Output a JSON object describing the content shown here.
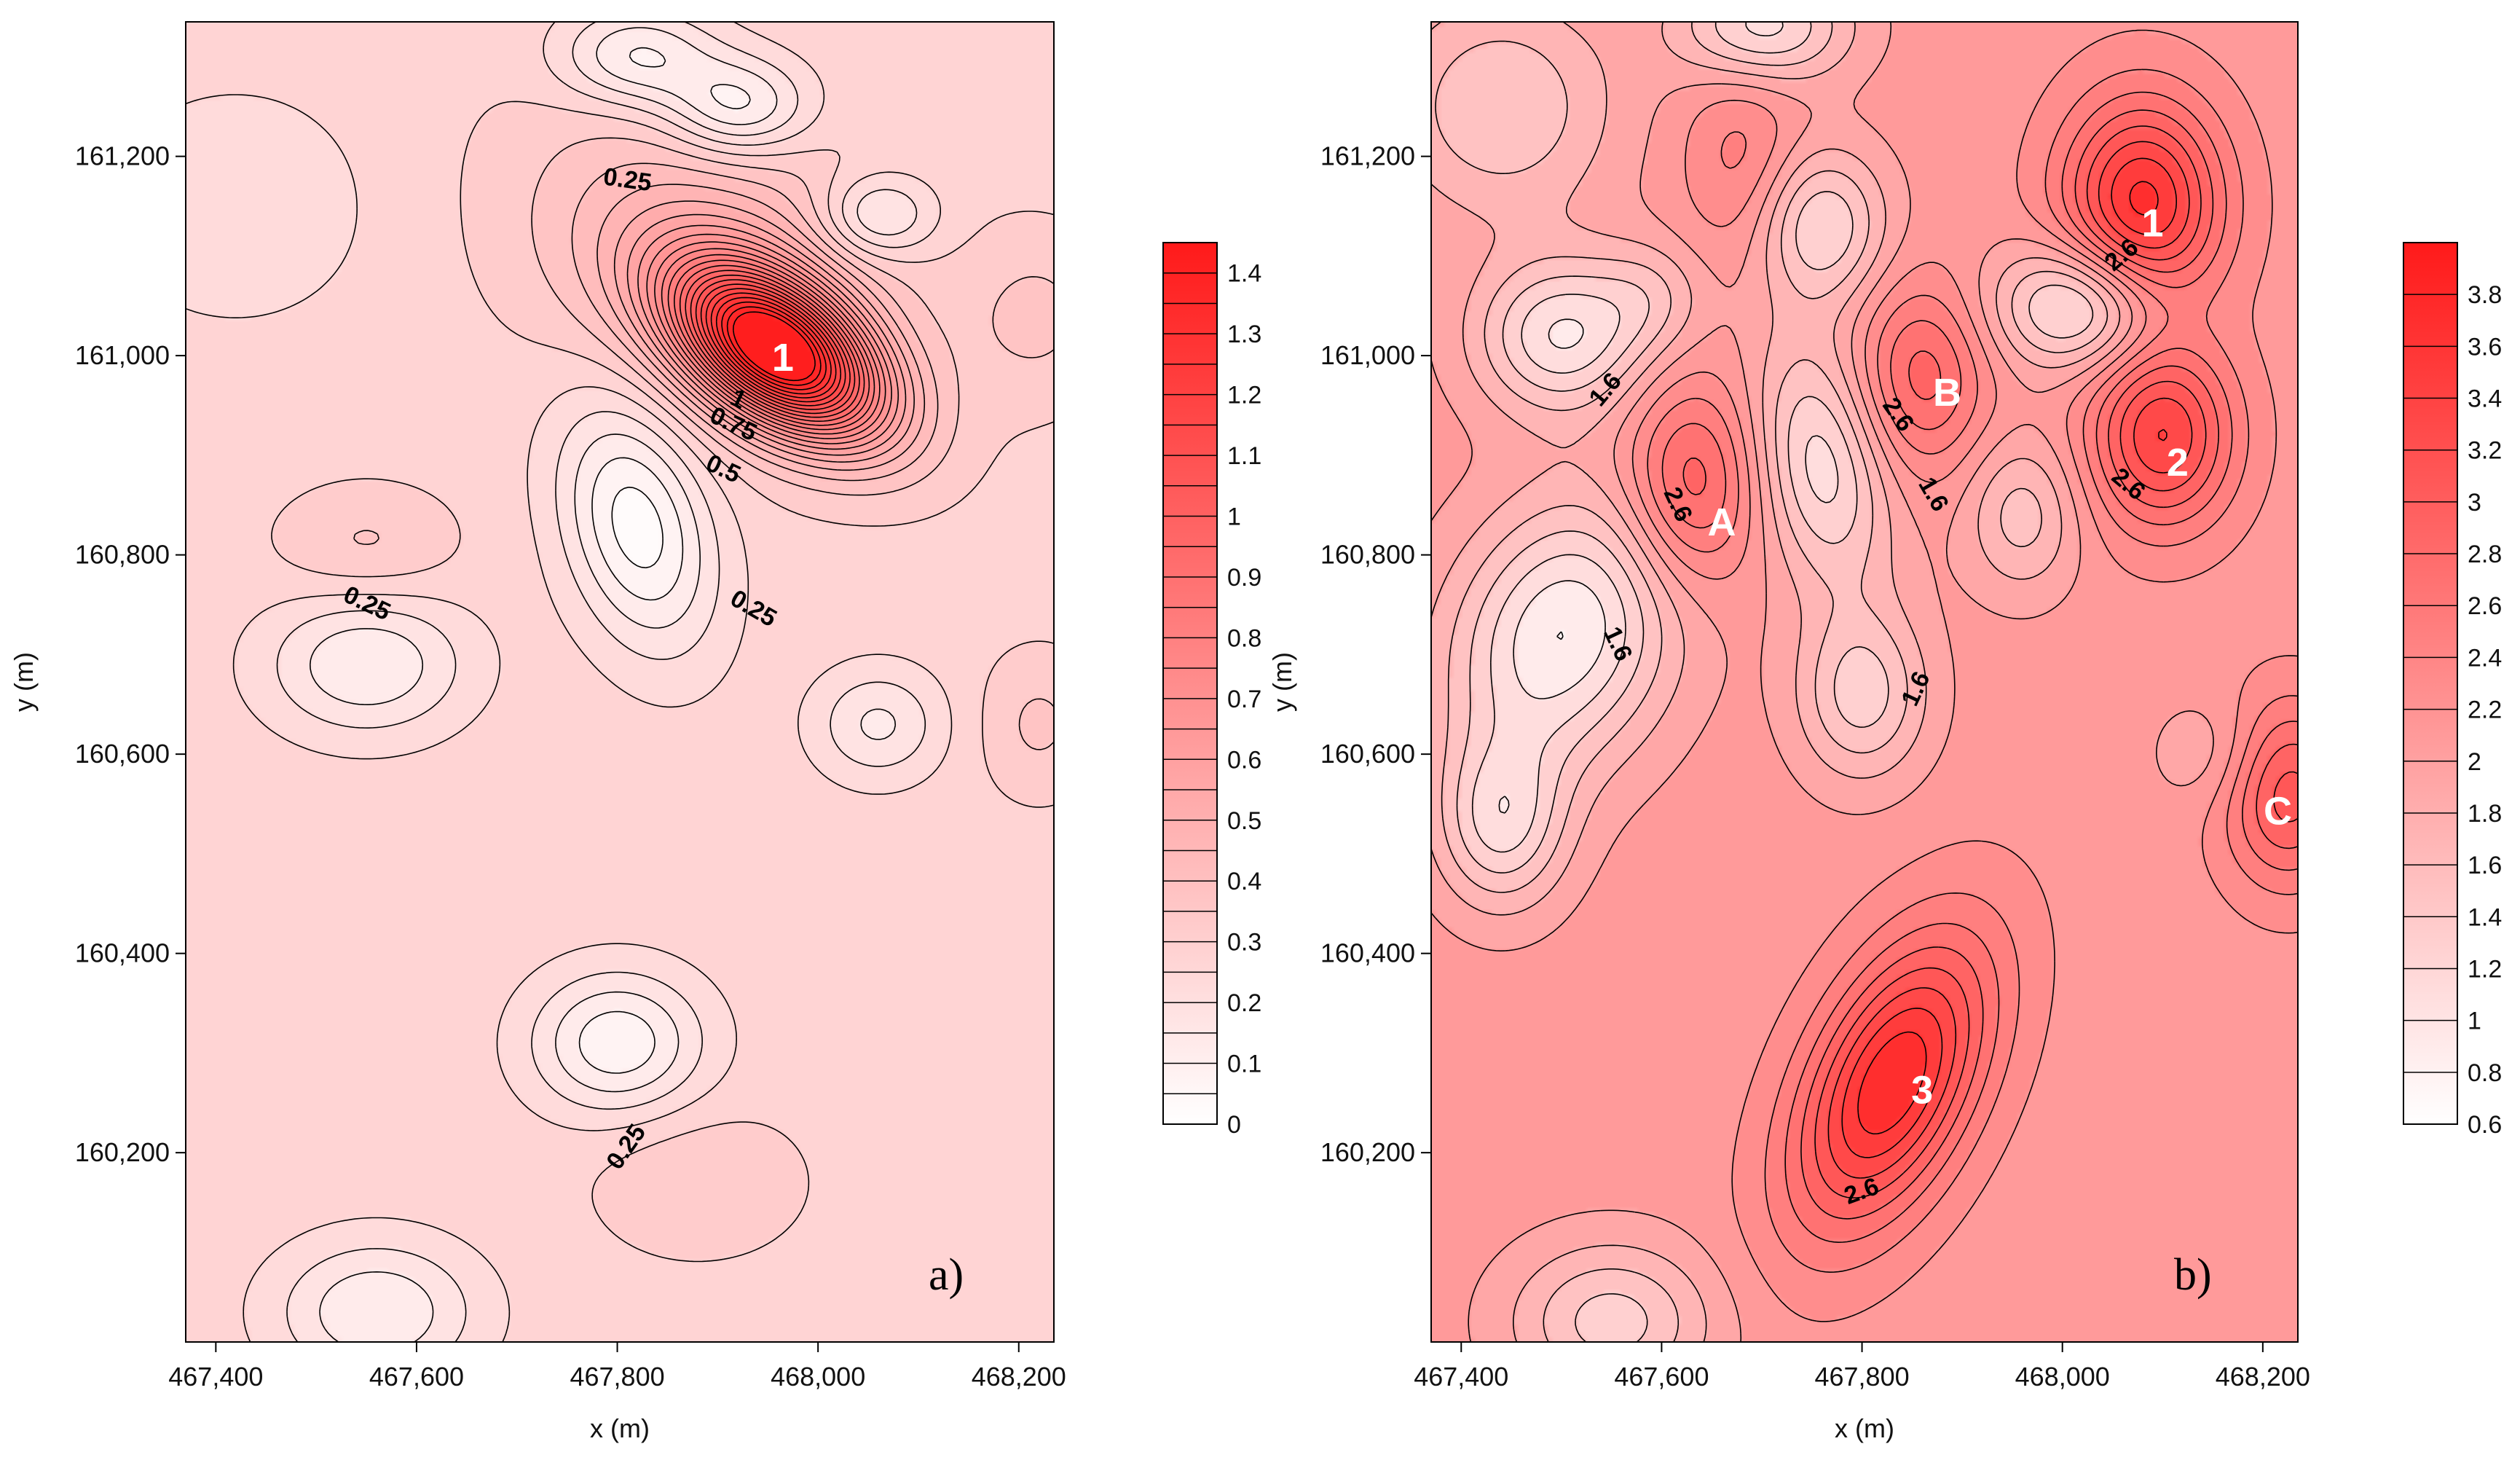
{
  "colors": {
    "low": "#ffffff",
    "high": "#ff1a1a",
    "line": "#000000"
  },
  "chart_data": [
    {
      "type": "contour",
      "panel_label": "a)",
      "xlabel": "x (m)",
      "ylabel": "y (m)",
      "xlim": [
        467370,
        468235
      ],
      "ylim": [
        160010,
        161335
      ],
      "x_ticks": [
        467400,
        467600,
        467800,
        468000,
        468200
      ],
      "x_tick_labels": [
        "467,400",
        "467,600",
        "467,800",
        "468,000",
        "468,200"
      ],
      "y_ticks": [
        160200,
        160400,
        160600,
        160800,
        161000,
        161200
      ],
      "y_tick_labels": [
        "160,200",
        "160,400",
        "160,600",
        "160,800",
        "161,000",
        "161,200"
      ],
      "background_value": 0.28,
      "level_min": 0,
      "level_max": 1.45,
      "level_step": 0.05,
      "colorbar": {
        "min": 0,
        "max": 1.45,
        "ticks": [
          0,
          0.1,
          0.2,
          0.3,
          0.4,
          0.5,
          0.6,
          0.7,
          0.8,
          0.9,
          1,
          1.1,
          1.2,
          1.3,
          1.4
        ],
        "tick_labels": [
          "0",
          "0.1",
          "0.2",
          "0.3",
          "0.4",
          "0.5",
          "0.6",
          "0.7",
          "0.8",
          "0.9",
          "1",
          "1.1",
          "1.2",
          "1.3",
          "1.4"
        ]
      },
      "sources": [
        {
          "x": 467960,
          "y": 161005,
          "sx": 80,
          "sy": 45,
          "rot": -35,
          "amp": 1.15
        },
        {
          "x": 467900,
          "y": 161090,
          "sx": 130,
          "sy": 90,
          "rot": -30,
          "amp": 0.22
        },
        {
          "x": 467820,
          "y": 161300,
          "sx": 55,
          "sy": 35,
          "rot": 0,
          "amp": -0.2
        },
        {
          "x": 467920,
          "y": 161250,
          "sx": 50,
          "sy": 35,
          "rot": 0,
          "amp": -0.22
        },
        {
          "x": 468060,
          "y": 161140,
          "sx": 40,
          "sy": 30,
          "rot": 0,
          "amp": -0.18
        },
        {
          "x": 467820,
          "y": 160830,
          "sx": 50,
          "sy": 90,
          "rot": 15,
          "amp": -0.26
        },
        {
          "x": 467550,
          "y": 160810,
          "sx": 60,
          "sy": 40,
          "rot": 0,
          "amp": 0.08
        },
        {
          "x": 467550,
          "y": 160690,
          "sx": 70,
          "sy": 50,
          "rot": 0,
          "amp": -0.18
        },
        {
          "x": 468060,
          "y": 160630,
          "sx": 45,
          "sy": 40,
          "rot": 0,
          "amp": -0.14
        },
        {
          "x": 468220,
          "y": 161040,
          "sx": 50,
          "sy": 60,
          "rot": 0,
          "amp": 0.08
        },
        {
          "x": 468220,
          "y": 160630,
          "sx": 40,
          "sy": 50,
          "rot": 0,
          "amp": 0.08
        },
        {
          "x": 467800,
          "y": 160310,
          "sx": 60,
          "sy": 50,
          "rot": 0,
          "amp": -0.22
        },
        {
          "x": 467880,
          "y": 160170,
          "sx": 70,
          "sy": 50,
          "rot": 0,
          "amp": 0.07
        },
        {
          "x": 467560,
          "y": 160040,
          "sx": 70,
          "sy": 50,
          "rot": 0,
          "amp": -0.18
        },
        {
          "x": 467420,
          "y": 161150,
          "sx": 90,
          "sy": 80,
          "rot": 0,
          "amp": -0.08
        }
      ],
      "contour_labels": [
        {
          "text": "0.25",
          "x": 467810,
          "y": 161175,
          "angle": 8
        },
        {
          "text": "1",
          "x": 467920,
          "y": 160955,
          "angle": 25
        },
        {
          "text": "0.75",
          "x": 467915,
          "y": 160930,
          "angle": 25
        },
        {
          "text": "0.5",
          "x": 467905,
          "y": 160885,
          "angle": 25
        },
        {
          "text": "0.25",
          "x": 467935,
          "y": 160745,
          "angle": 30
        },
        {
          "text": "0.25",
          "x": 467550,
          "y": 160750,
          "angle": 25
        },
        {
          "text": "0.25",
          "x": 467810,
          "y": 160205,
          "angle": -55
        }
      ],
      "markers": [
        {
          "text": "1",
          "x": 467965,
          "y": 160995
        }
      ]
    },
    {
      "type": "contour",
      "panel_label": "b)",
      "xlabel": "x (m)",
      "ylabel": "y (m)",
      "xlim": [
        467370,
        468235
      ],
      "ylim": [
        160010,
        161335
      ],
      "x_ticks": [
        467400,
        467600,
        467800,
        468000,
        468200
      ],
      "x_tick_labels": [
        "467,400",
        "467,600",
        "467,800",
        "468,000",
        "468,200"
      ],
      "y_ticks": [
        160200,
        160400,
        160600,
        160800,
        161000,
        161200
      ],
      "y_tick_labels": [
        "160,200",
        "160,400",
        "160,600",
        "160,800",
        "161,000",
        "161,200"
      ],
      "background_value": 2.1,
      "level_min": 0.6,
      "level_max": 4.0,
      "level_step": 0.2,
      "colorbar": {
        "min": 0.6,
        "max": 4.0,
        "ticks": [
          0.6,
          0.8,
          1,
          1.2,
          1.4,
          1.6,
          1.8,
          2,
          2.2,
          2.4,
          2.6,
          2.8,
          3,
          3.2,
          3.4,
          3.6,
          3.8
        ],
        "tick_labels": [
          "0.6",
          "0.8",
          "1",
          "1.2",
          "1.4",
          "1.6",
          "1.8",
          "2",
          "2.2",
          "2.4",
          "2.6",
          "2.8",
          "3",
          "3.2",
          "3.4",
          "3.6",
          "3.8"
        ]
      },
      "sources": [
        {
          "x": 468080,
          "y": 161150,
          "sx": 55,
          "sy": 75,
          "rot": 0,
          "amp": 1.6
        },
        {
          "x": 468100,
          "y": 160920,
          "sx": 50,
          "sy": 65,
          "rot": 0,
          "amp": 1.3
        },
        {
          "x": 467830,
          "y": 160270,
          "sx": 55,
          "sy": 110,
          "rot": -25,
          "amp": 1.7
        },
        {
          "x": 467630,
          "y": 160870,
          "sx": 45,
          "sy": 70,
          "rot": 0,
          "amp": 0.9
        },
        {
          "x": 467860,
          "y": 160980,
          "sx": 45,
          "sy": 65,
          "rot": 0,
          "amp": 0.8
        },
        {
          "x": 468225,
          "y": 160560,
          "sx": 45,
          "sy": 65,
          "rot": 0,
          "amp": 1.0
        },
        {
          "x": 467680,
          "y": 161200,
          "sx": 40,
          "sy": 70,
          "rot": 0,
          "amp": 0.4
        },
        {
          "x": 467500,
          "y": 160720,
          "sx": 75,
          "sy": 100,
          "rot": -25,
          "amp": -1.3
        },
        {
          "x": 467760,
          "y": 160890,
          "sx": 45,
          "sy": 90,
          "rot": 10,
          "amp": -1.0
        },
        {
          "x": 468020,
          "y": 161050,
          "sx": 60,
          "sy": 45,
          "rot": 0,
          "amp": -1.2
        },
        {
          "x": 467760,
          "y": 161130,
          "sx": 45,
          "sy": 55,
          "rot": 0,
          "amp": -0.9
        },
        {
          "x": 467500,
          "y": 161020,
          "sx": 60,
          "sy": 55,
          "rot": 0,
          "amp": -1.1
        },
        {
          "x": 467800,
          "y": 160660,
          "sx": 45,
          "sy": 60,
          "rot": 0,
          "amp": -0.8
        },
        {
          "x": 467440,
          "y": 160530,
          "sx": 45,
          "sy": 60,
          "rot": 0,
          "amp": -0.9
        },
        {
          "x": 467960,
          "y": 160840,
          "sx": 40,
          "sy": 55,
          "rot": 0,
          "amp": -0.6
        },
        {
          "x": 467700,
          "y": 161330,
          "sx": 60,
          "sy": 40,
          "rot": 0,
          "amp": -1.0
        },
        {
          "x": 467550,
          "y": 160030,
          "sx": 70,
          "sy": 55,
          "rot": 0,
          "amp": -0.8
        },
        {
          "x": 467440,
          "y": 161250,
          "sx": 80,
          "sy": 80,
          "rot": 0,
          "amp": -0.7
        },
        {
          "x": 468150,
          "y": 160600,
          "sx": 40,
          "sy": 40,
          "rot": 0,
          "amp": -0.3
        },
        {
          "x": 467590,
          "y": 161060,
          "sx": 40,
          "sy": 40,
          "rot": 0,
          "amp": -0.4
        }
      ],
      "contour_labels": [
        {
          "text": "2.6",
          "x": 468060,
          "y": 161100,
          "angle": -40
        },
        {
          "text": "1.6",
          "x": 467545,
          "y": 160965,
          "angle": -50
        },
        {
          "text": "2.6",
          "x": 467835,
          "y": 160940,
          "angle": 55
        },
        {
          "text": "2.6",
          "x": 468065,
          "y": 160870,
          "angle": 40
        },
        {
          "text": "2.6",
          "x": 467615,
          "y": 160850,
          "angle": 65
        },
        {
          "text": "1.6",
          "x": 467870,
          "y": 160860,
          "angle": 60
        },
        {
          "text": "1.6",
          "x": 467555,
          "y": 160710,
          "angle": 65
        },
        {
          "text": "1.6",
          "x": 467855,
          "y": 160665,
          "angle": -65
        },
        {
          "text": "2.6",
          "x": 467800,
          "y": 160160,
          "angle": -20
        }
      ],
      "markers": [
        {
          "text": "1",
          "x": 468090,
          "y": 161130
        },
        {
          "text": "B",
          "x": 467885,
          "y": 160960
        },
        {
          "text": "2",
          "x": 468115,
          "y": 160890
        },
        {
          "text": "A",
          "x": 467660,
          "y": 160830
        },
        {
          "text": "C",
          "x": 468215,
          "y": 160540
        },
        {
          "text": "3",
          "x": 467860,
          "y": 160260
        }
      ]
    }
  ]
}
